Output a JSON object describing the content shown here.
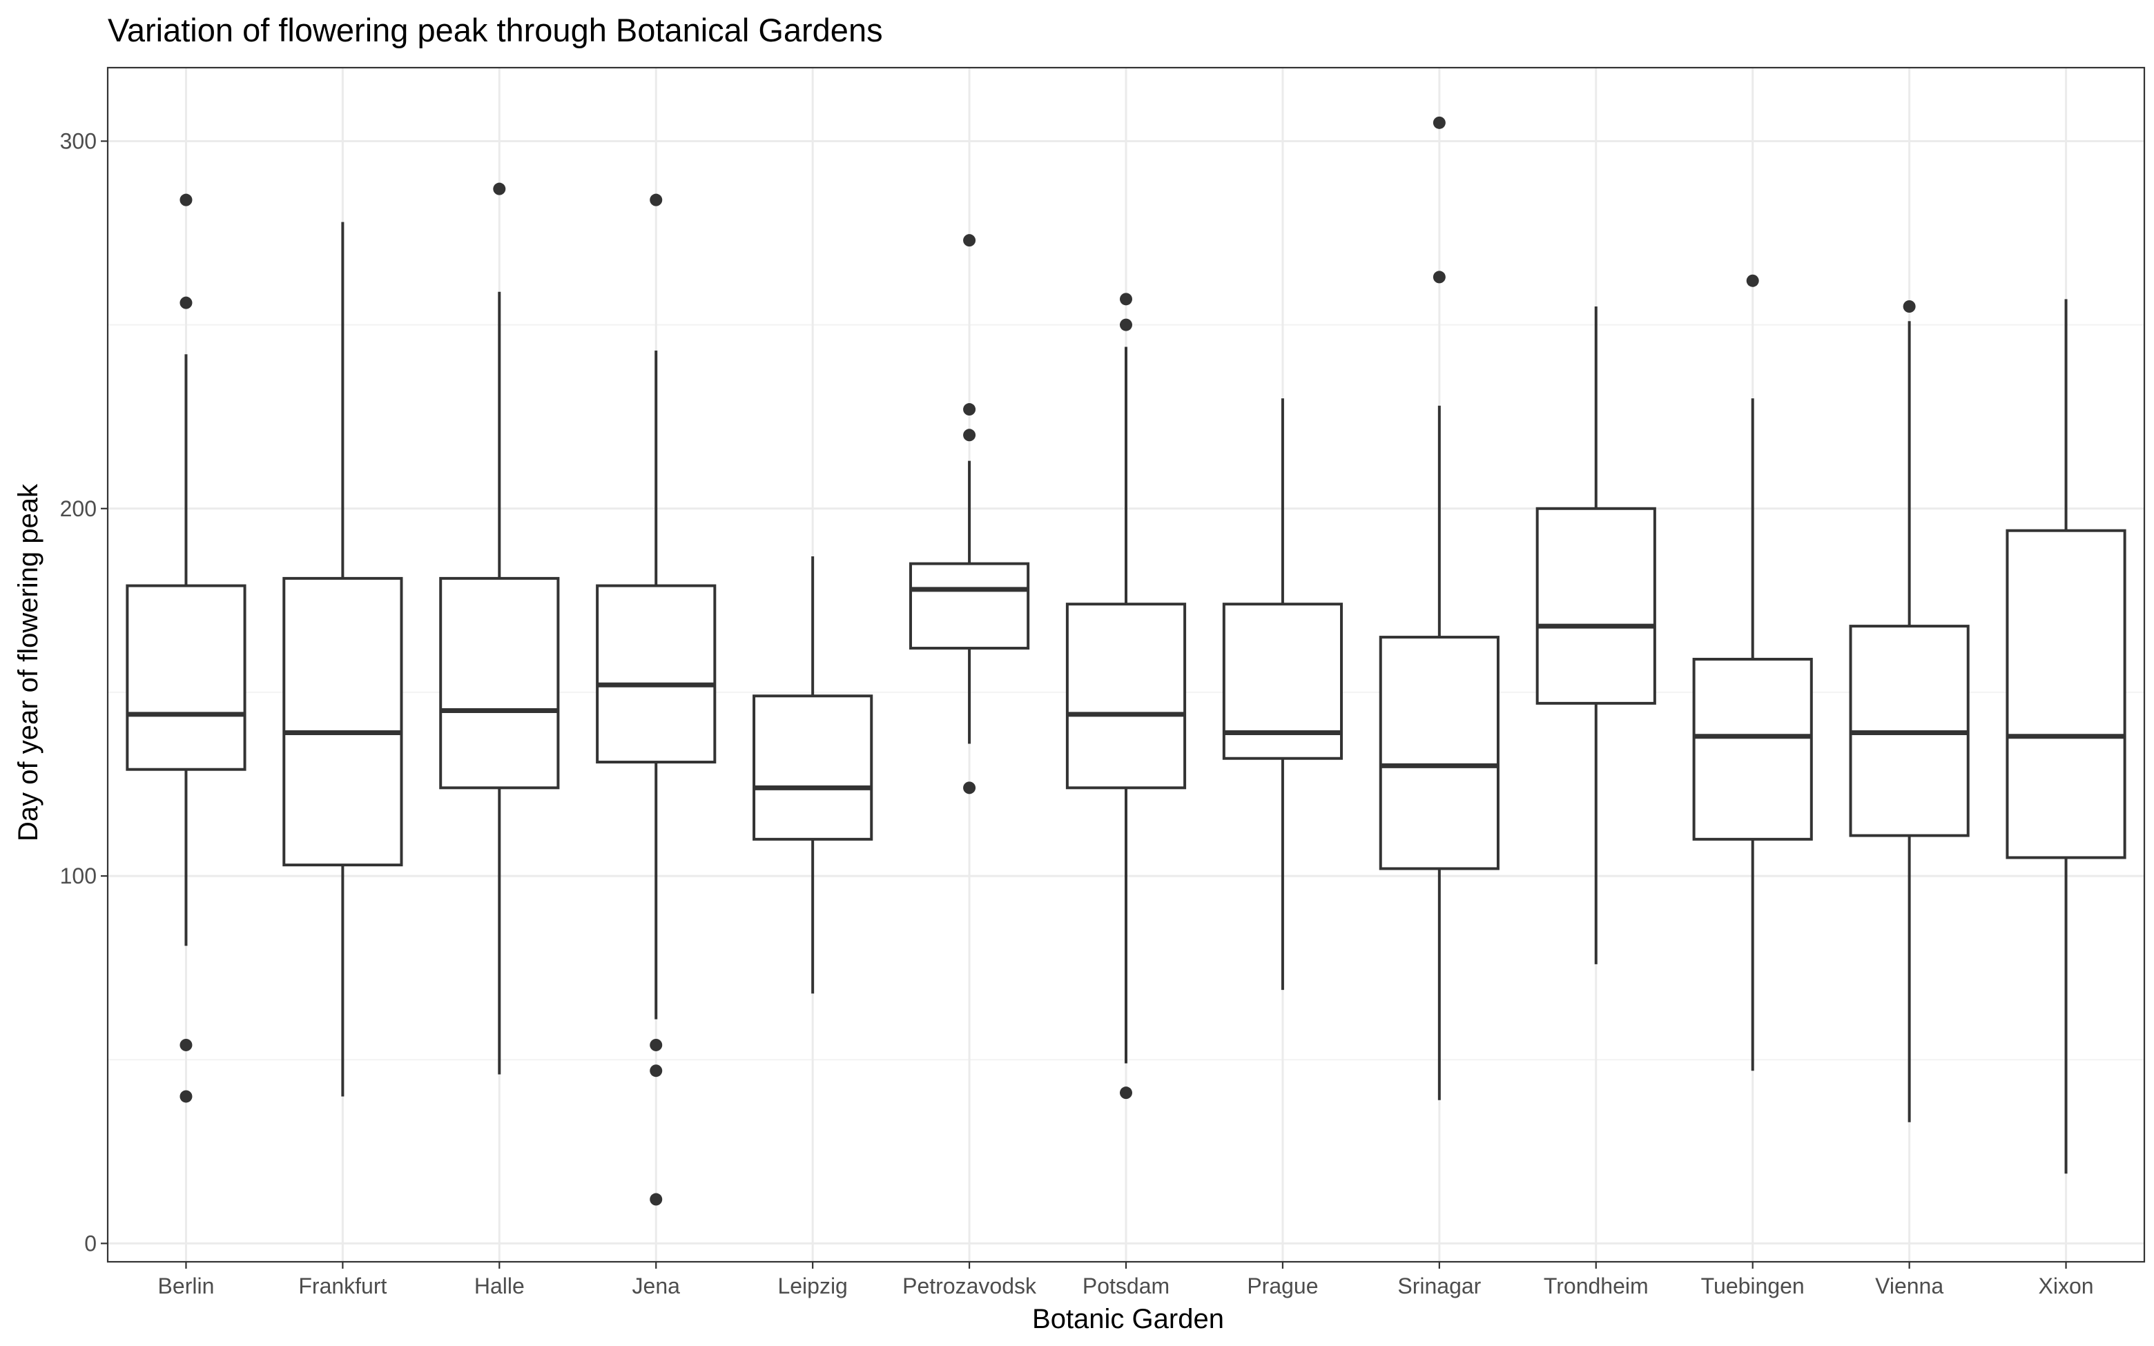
{
  "chart_data": {
    "type": "box",
    "title": "Variation of flowering peak through Botanical Gardens",
    "xlabel": "Botanic Garden",
    "ylabel": "Day of year of flowering peak",
    "ylim": [
      -5,
      320
    ],
    "yticks": [
      0,
      100,
      200,
      300
    ],
    "grid": true,
    "colors": {
      "box": "#333333",
      "grid_major": "#ebebeb",
      "grid_minor": "#f3f3f3",
      "panel_border": "#333333"
    },
    "categories": [
      "Berlin",
      "Frankfurt",
      "Halle",
      "Jena",
      "Leipzig",
      "Petrozavodsk",
      "Potsdam",
      "Prague",
      "Srinagar",
      "Trondheim",
      "Tuebingen",
      "Vienna",
      "Xixon"
    ],
    "boxes": [
      {
        "category": "Berlin",
        "whisker_low": 81,
        "q1": 129,
        "median": 144,
        "q3": 179,
        "whisker_high": 242,
        "outliers": [
          284,
          256,
          54,
          40
        ]
      },
      {
        "category": "Frankfurt",
        "whisker_low": 40,
        "q1": 103,
        "median": 139,
        "q3": 181,
        "whisker_high": 278,
        "outliers": []
      },
      {
        "category": "Halle",
        "whisker_low": 46,
        "q1": 124,
        "median": 145,
        "q3": 181,
        "whisker_high": 259,
        "outliers": [
          287
        ]
      },
      {
        "category": "Jena",
        "whisker_low": 61,
        "q1": 131,
        "median": 152,
        "q3": 179,
        "whisker_high": 243,
        "outliers": [
          284,
          54,
          47,
          12
        ]
      },
      {
        "category": "Leipzig",
        "whisker_low": 68,
        "q1": 110,
        "median": 124,
        "q3": 149,
        "whisker_high": 187,
        "outliers": []
      },
      {
        "category": "Petrozavodsk",
        "whisker_low": 136,
        "q1": 162,
        "median": 178,
        "q3": 185,
        "whisker_high": 213,
        "outliers": [
          273,
          227,
          220,
          124
        ]
      },
      {
        "category": "Potsdam",
        "whisker_low": 49,
        "q1": 124,
        "median": 144,
        "q3": 174,
        "whisker_high": 244,
        "outliers": [
          257,
          250,
          41
        ]
      },
      {
        "category": "Prague",
        "whisker_low": 69,
        "q1": 132,
        "median": 139,
        "q3": 174,
        "whisker_high": 230,
        "outliers": []
      },
      {
        "category": "Srinagar",
        "whisker_low": 39,
        "q1": 102,
        "median": 130,
        "q3": 165,
        "whisker_high": 228,
        "outliers": [
          305,
          263
        ]
      },
      {
        "category": "Trondheim",
        "whisker_low": 76,
        "q1": 147,
        "median": 168,
        "q3": 200,
        "whisker_high": 255,
        "outliers": []
      },
      {
        "category": "Tuebingen",
        "whisker_low": 47,
        "q1": 110,
        "median": 138,
        "q3": 159,
        "whisker_high": 230,
        "outliers": [
          262
        ]
      },
      {
        "category": "Vienna",
        "whisker_low": 33,
        "q1": 111,
        "median": 139,
        "q3": 168,
        "whisker_high": 251,
        "outliers": [
          255
        ]
      },
      {
        "category": "Xixon",
        "whisker_low": 19,
        "q1": 105,
        "median": 138,
        "q3": 194,
        "whisker_high": 257,
        "outliers": []
      }
    ]
  }
}
